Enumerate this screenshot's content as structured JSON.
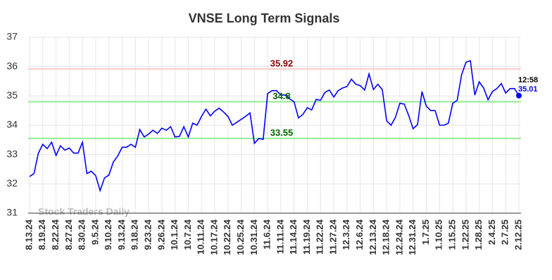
{
  "chart_data": {
    "type": "line",
    "title": "VNSE Long Term Signals",
    "watermark": "Stock Traders Daily",
    "categories": [
      "8.13.24",
      null,
      null,
      "8.19.24",
      null,
      null,
      "8.22.24",
      null,
      null,
      "8.27.24",
      null,
      null,
      "8.30.24",
      null,
      null,
      "9.5.24",
      null,
      null,
      "9.10.24",
      null,
      null,
      "9.13.24",
      null,
      null,
      "9.18.24",
      null,
      null,
      "9.23.24",
      null,
      null,
      "9.26.24",
      null,
      null,
      "10.1.24",
      null,
      null,
      "10.7.24",
      null,
      null,
      "10.11.24",
      null,
      null,
      "10.17.24",
      null,
      null,
      "10.22.24",
      null,
      null,
      "10.25.24",
      null,
      null,
      "10.31.24",
      null,
      null,
      "11.6.24",
      null,
      null,
      "11.11.24",
      null,
      null,
      "11.14.24",
      null,
      null,
      "11.19.24",
      null,
      null,
      "11.22.24",
      null,
      null,
      "11.27.24",
      null,
      null,
      "12.3.24",
      null,
      null,
      "12.6.24",
      null,
      null,
      "12.13.24",
      null,
      null,
      "12.18.24",
      null,
      null,
      "12.24.24",
      null,
      null,
      "12.31.24",
      null,
      null,
      "1.7.25",
      null,
      null,
      "1.10.25",
      null,
      null,
      "1.15.25",
      null,
      null,
      "1.22.25",
      null,
      null,
      "1.28.25",
      null,
      null,
      "2.4.25",
      null,
      null,
      "2.7.25",
      null,
      null,
      "2.12.25"
    ],
    "values": [
      32.25,
      32.35,
      33.05,
      33.35,
      33.2,
      33.42,
      32.97,
      33.3,
      33.15,
      33.22,
      33.05,
      33.05,
      33.42,
      32.35,
      32.43,
      32.28,
      31.77,
      32.2,
      32.3,
      32.75,
      32.95,
      33.25,
      33.25,
      33.35,
      33.25,
      33.85,
      33.6,
      33.7,
      33.83,
      33.72,
      33.9,
      33.83,
      33.95,
      33.6,
      33.62,
      33.95,
      33.6,
      34.07,
      34.0,
      34.3,
      34.55,
      34.32,
      34.48,
      34.58,
      34.45,
      34.3,
      34.0,
      34.1,
      34.2,
      34.3,
      34.42,
      33.38,
      33.55,
      33.52,
      35.08,
      35.18,
      35.18,
      35.03,
      35.03,
      34.9,
      34.8,
      34.25,
      34.37,
      34.6,
      34.52,
      34.88,
      34.85,
      35.12,
      35.2,
      34.96,
      35.18,
      35.27,
      35.32,
      35.57,
      35.4,
      35.35,
      35.2,
      35.75,
      35.22,
      35.4,
      35.22,
      34.15,
      34.0,
      34.27,
      34.75,
      34.72,
      34.33,
      33.88,
      34.02,
      35.15,
      34.65,
      34.5,
      34.5,
      34.0,
      34.0,
      34.07,
      34.75,
      34.85,
      35.72,
      36.15,
      36.2,
      35.03,
      35.48,
      35.27,
      34.87,
      35.15,
      35.25,
      35.42,
      35.1,
      35.25,
      35.25,
      35.01
    ],
    "color": "#0000ff",
    "ylim": [
      31,
      37
    ],
    "yticks": [
      31,
      32,
      33,
      34,
      35,
      36,
      37
    ],
    "grid": true,
    "hlines": [
      {
        "value": 35.92,
        "color": "#ffcccc",
        "label_color": "#8b0000"
      },
      {
        "value": 34.8,
        "color": "#90ee90",
        "label_color": "#006400"
      },
      {
        "value": 33.55,
        "color": "#90ee90",
        "label_color": "#006400"
      }
    ],
    "last_time": "12:58"
  }
}
